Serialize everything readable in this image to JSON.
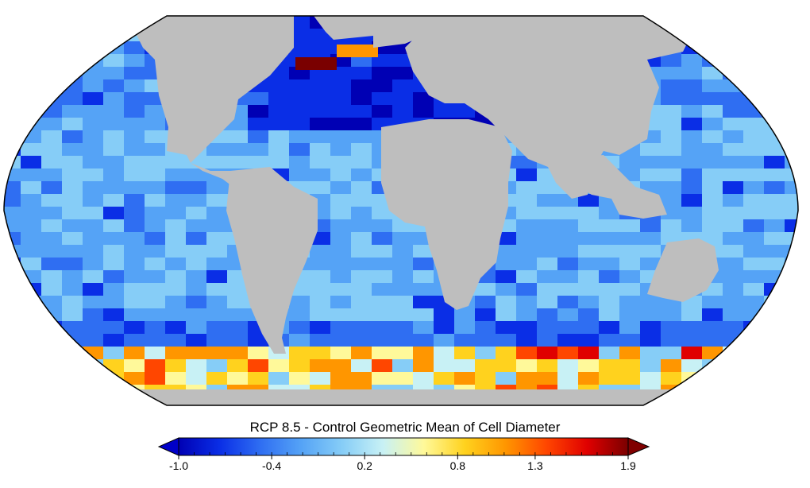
{
  "title": "RCP 8.5 - Control Geometric Mean of Cell Diameter",
  "colorbar": {
    "min": -1.0,
    "max": 1.9,
    "tick_labels": [
      "-1.0",
      "-0.4",
      "0.2",
      "0.8",
      "1.3",
      "1.9"
    ],
    "tick_values": [
      -1.0,
      -0.4,
      0.2,
      0.8,
      1.3,
      1.9
    ],
    "extend": "both",
    "colors": [
      "#0000b4",
      "#0a2ee6",
      "#2f6ef2",
      "#55a3f6",
      "#86cdf7",
      "#c8f1f5",
      "#fff99a",
      "#ffd21e",
      "#ff9600",
      "#ff4600",
      "#e00000",
      "#7a0000"
    ],
    "under_color": "#0000c8",
    "over_color": "#800000"
  },
  "map": {
    "projection": "robinson",
    "land_color": "#bebebe",
    "outline_color": "#000000"
  }
}
